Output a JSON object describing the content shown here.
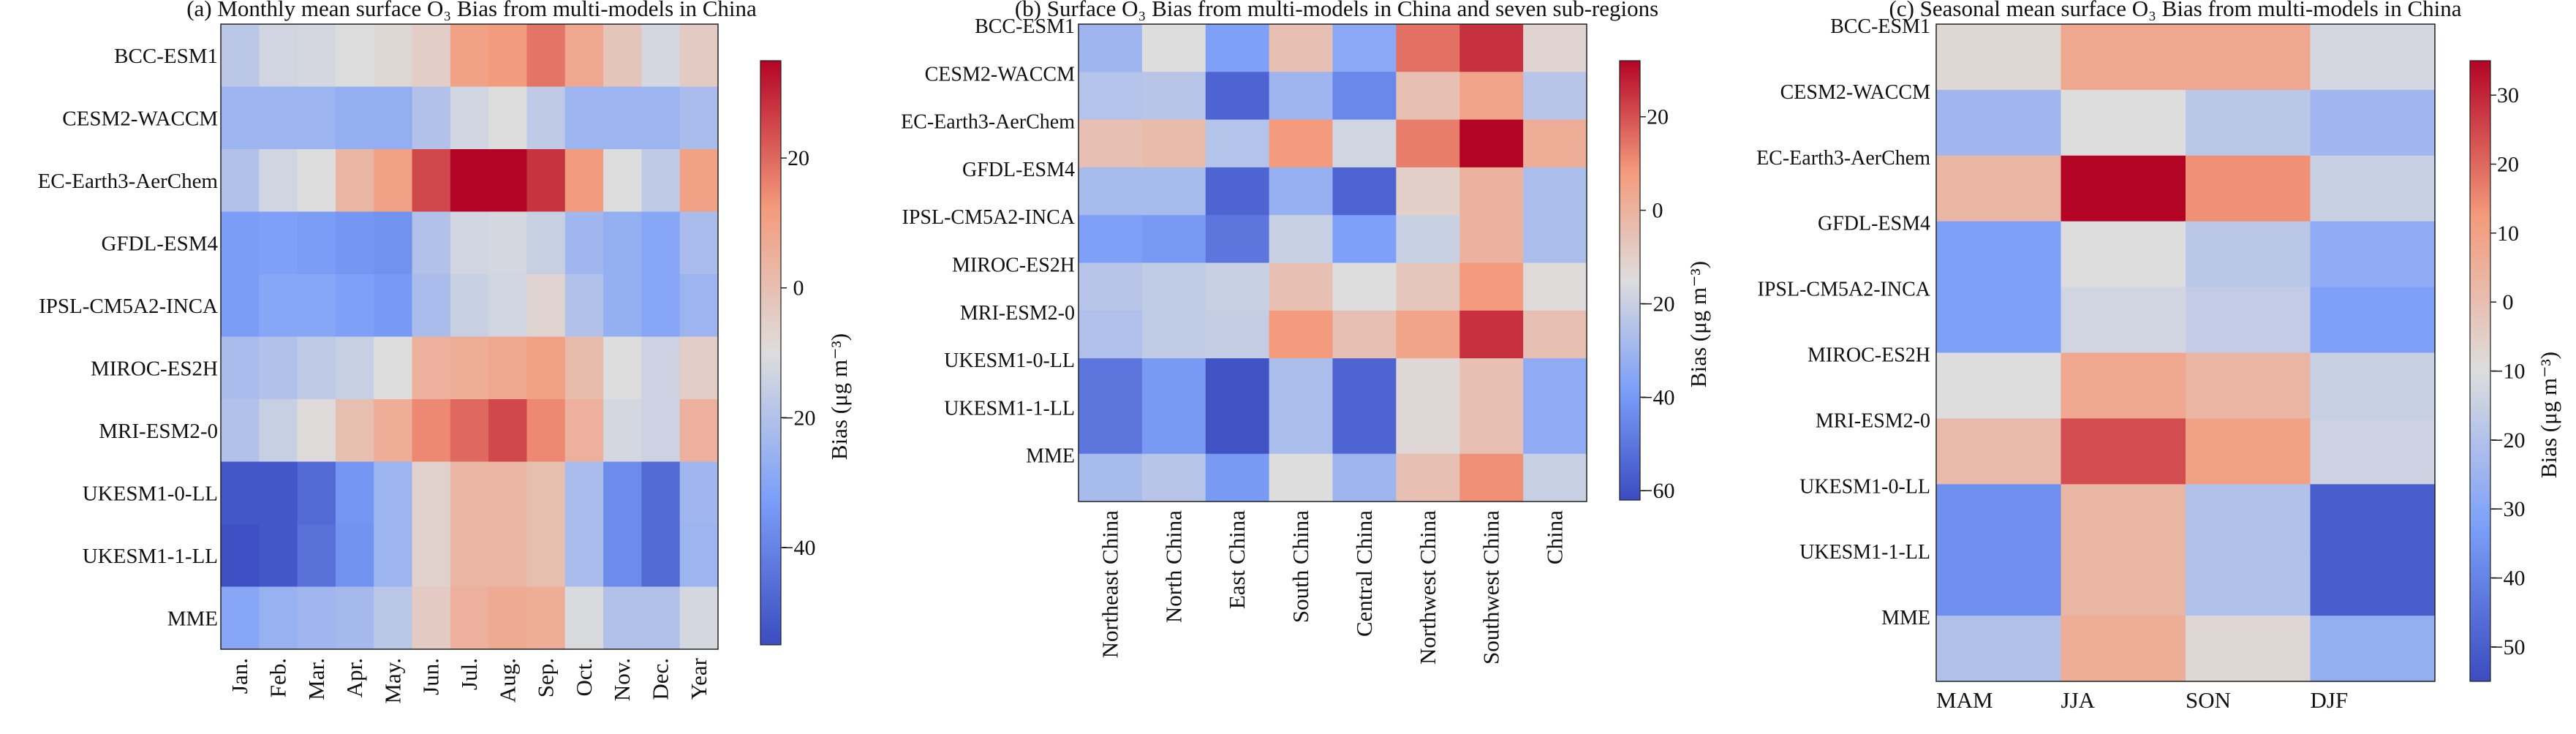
{
  "chart_data": [
    {
      "type": "heatmap",
      "title": "(a) Monthly mean surface O₃ Bias from multi-models in China",
      "rows": [
        "BCC-ESM1",
        "CESM2-WACCM",
        "EC-Earth3-AerChem",
        "GFDL-ESM4",
        "IPSL-CM5A2-INCA",
        "MIROC-ES2H",
        "MRI-ESM2-0",
        "UKESM1-0-LL",
        "UKESM1-1-LL",
        "MME"
      ],
      "columns": [
        "Jan.",
        "Feb.",
        "Mar.",
        "Apr.",
        "May.",
        "Jun.",
        "Jul.",
        "Aug.",
        "Sep.",
        "Oct.",
        "Nov.",
        "Dec.",
        "Year"
      ],
      "colorbar": {
        "label": "Bias (μg m⁻³)",
        "vmin": -55,
        "vmax": 35,
        "ticks": [
          -40,
          -20,
          0,
          20
        ]
      },
      "values": [
        [
          -18,
          -13,
          -12,
          -10,
          -8,
          -5,
          10,
          12,
          18,
          8,
          -2,
          -12,
          -4
        ],
        [
          -25,
          -25,
          -25,
          -27,
          -27,
          -20,
          -13,
          -10,
          -17,
          -25,
          -25,
          -25,
          -22
        ],
        [
          -20,
          -13,
          -10,
          3,
          10,
          25,
          35,
          35,
          28,
          12,
          -10,
          -17,
          10
        ],
        [
          -33,
          -32,
          -33,
          -35,
          -36,
          -20,
          -13,
          -12,
          -15,
          -24,
          -27,
          -30,
          -22
        ],
        [
          -33,
          -30,
          -30,
          -32,
          -34,
          -22,
          -15,
          -13,
          -7,
          -20,
          -27,
          -30,
          -25
        ],
        [
          -22,
          -20,
          -17,
          -15,
          -10,
          5,
          6,
          8,
          10,
          1,
          -10,
          -14,
          -5
        ],
        [
          -20,
          -15,
          -9,
          0,
          6,
          15,
          20,
          25,
          15,
          5,
          -12,
          -14,
          5
        ],
        [
          -52,
          -52,
          -47,
          -35,
          -25,
          -6,
          3,
          3,
          0,
          -22,
          -38,
          -47,
          -24
        ],
        [
          -54,
          -52,
          -45,
          -36,
          -25,
          -6,
          3,
          3,
          0,
          -22,
          -38,
          -47,
          -25
        ],
        [
          -30,
          -26,
          -24,
          -23,
          -18,
          -4,
          5,
          7,
          6,
          -11,
          -20,
          -20,
          -12
        ]
      ]
    },
    {
      "type": "heatmap",
      "title": "(b) Surface O₃ Bias from multi-models in China and seven sub-regions",
      "rows": [
        "BCC-ESM1",
        "CESM2-WACCM",
        "EC-Earth3-AerChem",
        "GFDL-ESM4",
        "IPSL-CM5A2-INCA",
        "MIROC-ES2H",
        "MRI-ESM2-0",
        "UKESM1-0-LL",
        "UKESM1-1-LL",
        "MME"
      ],
      "columns": [
        "Northeast China",
        "North China",
        "East China",
        "South China",
        "Central China",
        "Northwest China",
        "Southwest China",
        "China"
      ],
      "colorbar": {
        "label": "Bias (μg m⁻³)",
        "vmin": -62,
        "vmax": 32,
        "ticks": [
          -60,
          -40,
          -20,
          0,
          20
        ]
      },
      "values": [
        [
          -30,
          -15,
          -38,
          -5,
          -35,
          15,
          25,
          -12
        ],
        [
          -25,
          -24,
          -55,
          -30,
          -45,
          -5,
          5,
          -24
        ],
        [
          -5,
          -3,
          -25,
          8,
          -18,
          13,
          32,
          2
        ],
        [
          -28,
          -28,
          -55,
          -32,
          -55,
          -10,
          0,
          -27
        ],
        [
          -38,
          -40,
          -50,
          -20,
          -38,
          -20,
          0,
          -27
        ],
        [
          -24,
          -22,
          -20,
          -5,
          -15,
          -7,
          8,
          -14
        ],
        [
          -26,
          -22,
          -21,
          8,
          -5,
          5,
          25,
          -5
        ],
        [
          -50,
          -40,
          -60,
          -27,
          -55,
          -13,
          -5,
          -34
        ],
        [
          -50,
          -40,
          -60,
          -27,
          -55,
          -13,
          -5,
          -34
        ],
        [
          -28,
          -24,
          -40,
          -15,
          -30,
          -5,
          10,
          -20
        ]
      ]
    },
    {
      "type": "heatmap",
      "title": "(c) Seasonal mean surface O₃ Bias from multi-models in China",
      "rows": [
        "BCC-ESM1",
        "CESM2-WACCM",
        "EC-Earth3-AerChem",
        "GFDL-ESM4",
        "IPSL-CM5A2-INCA",
        "MIROC-ES2H",
        "MRI-ESM2-0",
        "UKESM1-0-LL",
        "UKESM1-1-LL",
        "MME"
      ],
      "columns": [
        "MAM",
        "JJA",
        "SON",
        "DJF"
      ],
      "colorbar": {
        "label": "Bias (μg m⁻³)",
        "vmin": -55,
        "vmax": 35,
        "ticks": [
          -50,
          -40,
          -30,
          -20,
          -10,
          0,
          10,
          20,
          30
        ]
      },
      "values": [
        [
          -8,
          8,
          8,
          -12
        ],
        [
          -24,
          -10,
          -18,
          -24
        ],
        [
          3,
          35,
          14,
          -15
        ],
        [
          -32,
          -10,
          -18,
          -28
        ],
        [
          -32,
          -13,
          -16,
          -32
        ],
        [
          -10,
          8,
          3,
          -15
        ],
        [
          2,
          24,
          10,
          -14
        ],
        [
          -37,
          3,
          -20,
          -50
        ],
        [
          -37,
          3,
          -20,
          -50
        ],
        [
          -20,
          6,
          -8,
          -27
        ]
      ]
    }
  ]
}
